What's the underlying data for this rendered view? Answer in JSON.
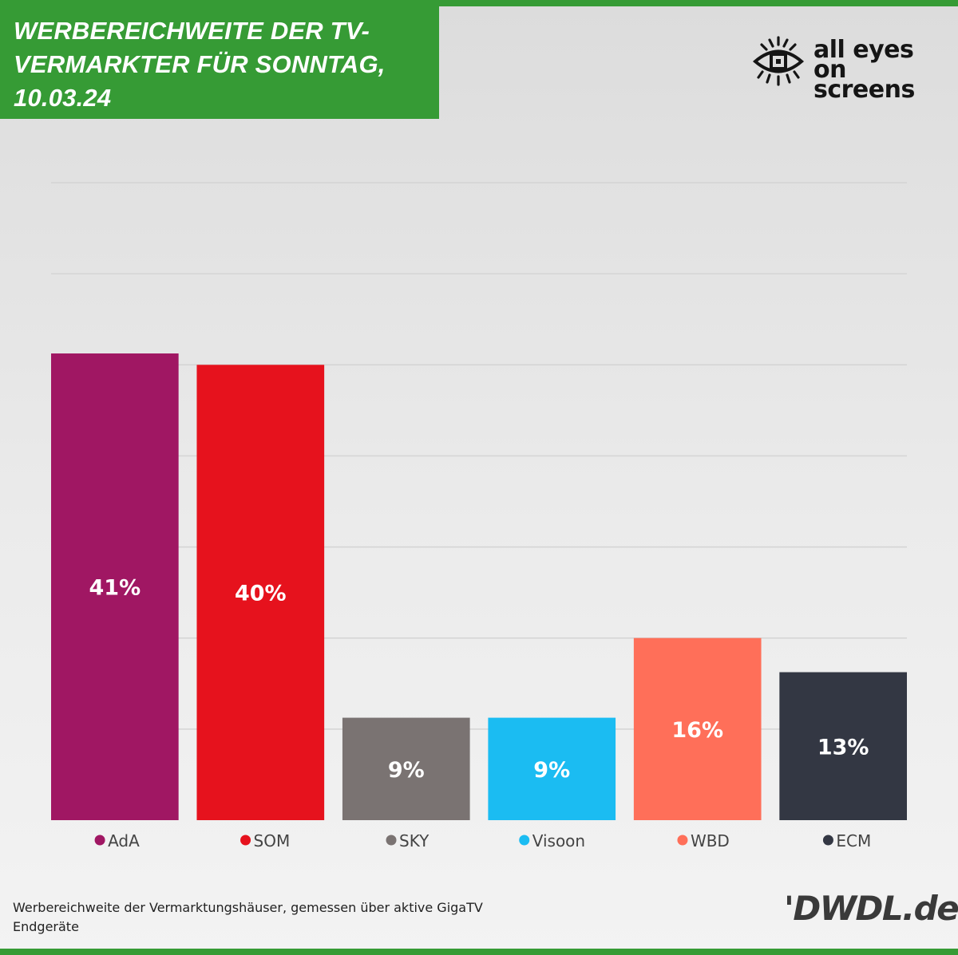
{
  "header": {
    "title": "WERBEREICHWEITE DER TV-VERMARKTER FÜR SONNTAG, 10.03.24",
    "logo_line1": "all eyes on",
    "logo_line2": "screens"
  },
  "chart_data": {
    "type": "bar",
    "title": "WERBEREICHWEITE DER TV-VERMARKTER FÜR SONNTAG, 10.03.24",
    "categories": [
      "AdA",
      "SOM",
      "SKY",
      "Visoon",
      "WBD",
      "ECM"
    ],
    "values": [
      41,
      40,
      9,
      9,
      16,
      13
    ],
    "value_labels": [
      "41%",
      "40%",
      "9%",
      "9%",
      "16%",
      "13%"
    ],
    "colors": [
      "#a01763",
      "#e6121d",
      "#7a7372",
      "#1bbcf2",
      "#ff6f59",
      "#333743"
    ],
    "ylim": [
      0,
      56
    ],
    "grid": true,
    "legend": "bottom",
    "xlabel": "",
    "ylabel": ""
  },
  "footer": {
    "note": "Werbereichweite der Vermarktungshäuser, gemessen über aktive GigaTV Endgeräte",
    "brand": "'DWDL.de"
  }
}
